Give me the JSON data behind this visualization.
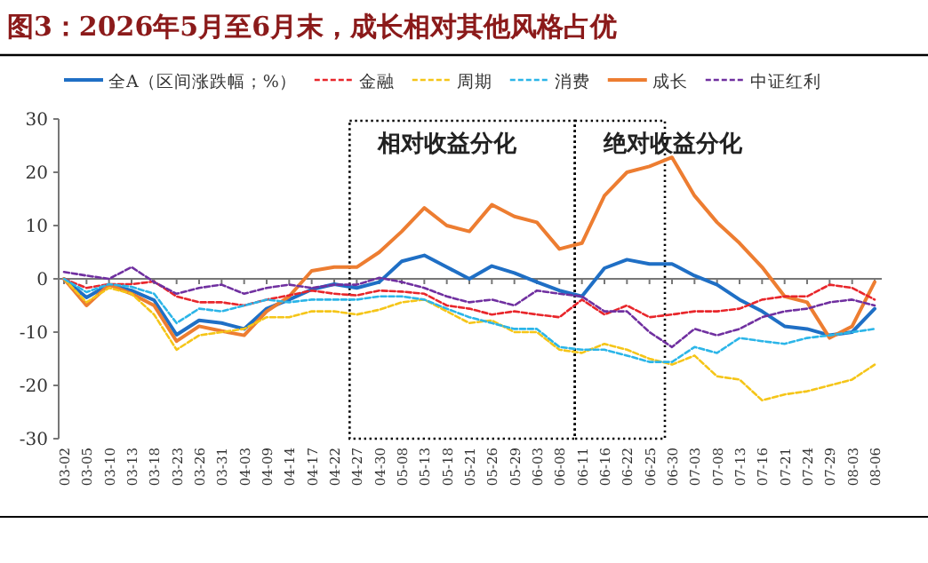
{
  "chart_data": {
    "type": "line",
    "title": "图3：2026年5月至6月末，成长相对其他风格占优",
    "categories": [
      "03-02",
      "03-05",
      "03-10",
      "03-13",
      "03-18",
      "03-23",
      "03-26",
      "03-31",
      "04-03",
      "04-09",
      "04-14",
      "04-17",
      "04-22",
      "04-27",
      "04-30",
      "05-08",
      "05-13",
      "05-18",
      "05-21",
      "05-26",
      "05-29",
      "06-03",
      "06-08",
      "06-11",
      "06-16",
      "06-22",
      "06-25",
      "06-30",
      "07-03",
      "07-08",
      "07-13",
      "07-16",
      "07-21",
      "07-24",
      "07-29",
      "08-03",
      "08-06"
    ],
    "ylim": [
      -30,
      30
    ],
    "yticks": [
      -30,
      -20,
      -10,
      0,
      10,
      20,
      30
    ],
    "legend": "top",
    "annotations": [
      "相对收益分化",
      "绝对收益分化"
    ],
    "series": [
      {
        "name": "全A（区间涨跌幅；%）",
        "color": "#1f6fc5",
        "line_style": "solid",
        "values": [
          0,
          -3.5,
          -1.1,
          -2.2,
          -4,
          -10.5,
          -7.8,
          -8.3,
          -9.4,
          -5.6,
          -3.9,
          -2,
          -1,
          -1.7,
          -0.6,
          3.3,
          4.4,
          2.2,
          0,
          2.4,
          1.1,
          -0.6,
          -2.2,
          -3.3,
          2,
          3.6,
          2.8,
          2.8,
          0.6,
          -1.1,
          -3.9,
          -6.1,
          -8.9,
          -9.4,
          -10.6,
          -10,
          -5.6
        ]
      },
      {
        "name": "金融",
        "color": "#e8262b",
        "line_style": "dashed",
        "values": [
          0,
          -1.7,
          -1,
          -1,
          -0.5,
          -3.3,
          -4.4,
          -4.4,
          -5,
          -3.9,
          -3.1,
          -2.2,
          -2.8,
          -3.1,
          -2.2,
          -2.4,
          -2.8,
          -5,
          -5.6,
          -6.7,
          -6.1,
          -6.7,
          -7.2,
          -3.9,
          -6.7,
          -5,
          -7.2,
          -6.7,
          -6.1,
          -6.1,
          -5.6,
          -3.9,
          -3.3,
          -3.3,
          -1.1,
          -1.7,
          -3.9
        ]
      },
      {
        "name": "周期",
        "color": "#f5c518",
        "line_style": "dashed",
        "values": [
          0,
          -4.4,
          -1.7,
          -2.8,
          -6.7,
          -13.3,
          -10.6,
          -10,
          -9.4,
          -7.2,
          -7.2,
          -6.1,
          -6.1,
          -6.7,
          -5.8,
          -4.4,
          -3.9,
          -6.1,
          -8.3,
          -7.8,
          -10,
          -10,
          -13.3,
          -13.9,
          -12.2,
          -13.3,
          -15,
          -16.1,
          -14.4,
          -18.3,
          -18.9,
          -22.8,
          -21.7,
          -21.1,
          -20,
          -18.9,
          -16.1
        ]
      },
      {
        "name": "消费",
        "color": "#2bb5e8",
        "line_style": "dashed",
        "values": [
          0,
          -2.5,
          -1,
          -1.5,
          -2.8,
          -8.3,
          -5.6,
          -6.1,
          -5,
          -3.9,
          -4.4,
          -3.9,
          -3.9,
          -3.9,
          -3.3,
          -3.3,
          -3.9,
          -5.6,
          -7.2,
          -8.3,
          -9.4,
          -9.4,
          -12.8,
          -13.3,
          -13.3,
          -14.4,
          -15.6,
          -15.6,
          -12.8,
          -13.9,
          -11.1,
          -11.7,
          -12.2,
          -11.1,
          -10.6,
          -10,
          -9.4
        ]
      },
      {
        "name": "成长",
        "color": "#ed7d31",
        "line_style": "solid",
        "values": [
          0,
          -5,
          -1.1,
          -2.8,
          -5,
          -11.7,
          -8.9,
          -9.8,
          -10.6,
          -6.1,
          -3.3,
          1.5,
          2.2,
          2.2,
          5,
          8.9,
          13.3,
          10,
          8.9,
          13.9,
          11.7,
          10.6,
          5.6,
          6.7,
          15.6,
          20,
          21.1,
          22.8,
          15.6,
          10.6,
          6.7,
          2.2,
          -3.3,
          -4.4,
          -11.1,
          -8.9,
          -0.6
        ]
      },
      {
        "name": "中证红利",
        "color": "#7030a0",
        "line_style": "dashed",
        "values": [
          1.3,
          0.6,
          0,
          2.2,
          -0.6,
          -2.8,
          -1.7,
          -1.1,
          -2.8,
          -1.7,
          -1.1,
          -1.7,
          -1.1,
          -1.1,
          0.2,
          -0.6,
          -1.7,
          -3.3,
          -4.4,
          -3.9,
          -5,
          -2.2,
          -2.8,
          -3.3,
          -6.1,
          -6.1,
          -10,
          -12.8,
          -9.4,
          -10.6,
          -9.4,
          -7.2,
          -6.1,
          -5.6,
          -4.4,
          -3.9,
          -5
        ]
      }
    ]
  }
}
